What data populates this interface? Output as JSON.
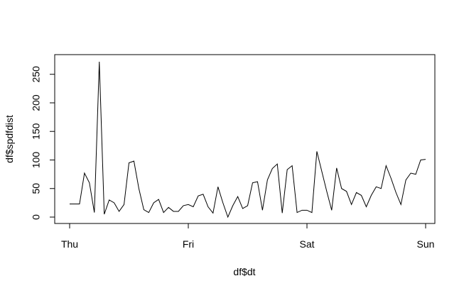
{
  "chart_data": {
    "type": "line",
    "title": "",
    "xlabel": "df$dt",
    "ylabel": "df$spdfdist",
    "x_tick_labels": [
      "Thu",
      "Fri",
      "Sat",
      "Sun"
    ],
    "y_tick_labels": [
      "0",
      "50",
      "100",
      "150",
      "200",
      "250"
    ],
    "y_ticks": [
      0,
      50,
      100,
      150,
      200,
      250
    ],
    "ylim": [
      0,
      272
    ],
    "x_range": [
      0,
      72
    ],
    "grid": false,
    "series": [
      {
        "color": "#000000",
        "x": [
          0,
          1,
          2,
          3,
          4,
          5,
          6,
          7,
          8,
          9,
          10,
          11,
          12,
          13,
          14,
          15,
          16,
          17,
          18,
          19,
          20,
          21,
          22,
          23,
          24,
          25,
          26,
          27,
          28,
          29,
          30,
          31,
          32,
          33,
          34,
          35,
          36,
          37,
          38,
          39,
          40,
          41,
          42,
          43,
          44,
          45,
          46,
          47,
          48,
          49,
          50,
          51,
          52,
          53,
          54,
          55,
          56,
          57,
          58,
          59,
          60,
          61,
          62,
          63,
          64,
          65,
          66,
          67,
          68,
          69,
          70,
          71,
          72
        ],
        "values": [
          23,
          23,
          23,
          77,
          60,
          8,
          272,
          5,
          30,
          25,
          10,
          22,
          95,
          98,
          50,
          13,
          8,
          25,
          31,
          8,
          17,
          10,
          10,
          20,
          22,
          18,
          37,
          40,
          18,
          7,
          53,
          25,
          0,
          20,
          36,
          15,
          20,
          60,
          62,
          12,
          65,
          85,
          93,
          7,
          83,
          90,
          8,
          12,
          12,
          8,
          115,
          80,
          45,
          12,
          86,
          50,
          45,
          22,
          43,
          38,
          18,
          38,
          53,
          50,
          90,
          68,
          43,
          22,
          65,
          77,
          75,
          100,
          101
        ]
      }
    ]
  }
}
